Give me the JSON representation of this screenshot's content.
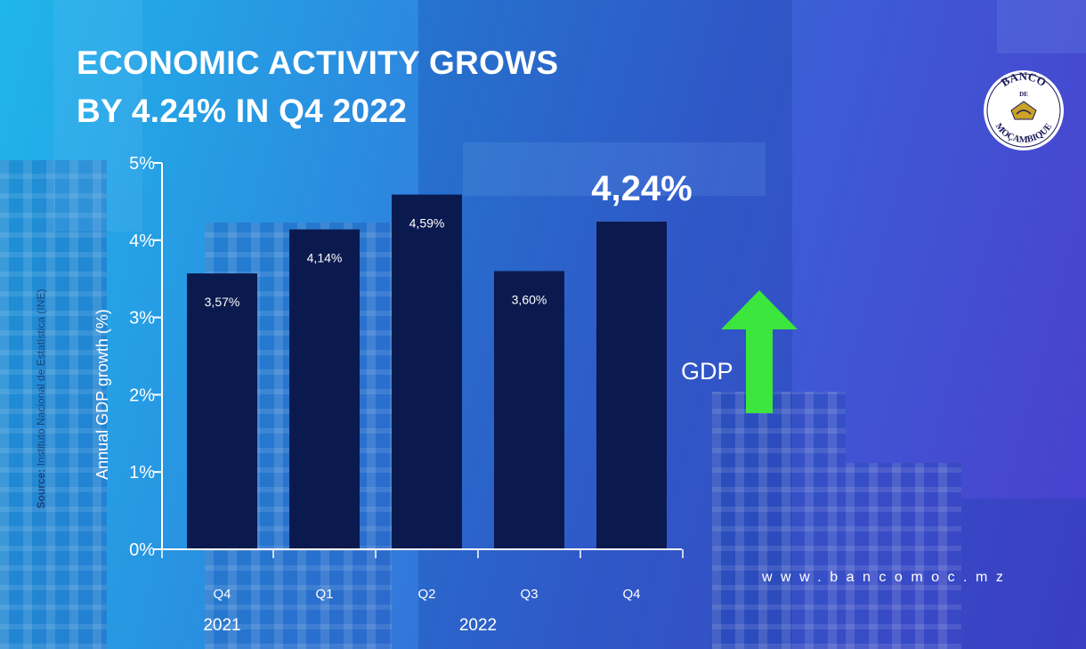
{
  "title": {
    "line1": "ECONOMIC ACTIVITY GROWS",
    "line2": "BY 4.24% IN Q4 2022"
  },
  "logo": {
    "top_text": "BANCO",
    "middle_text": "DE",
    "bottom_text": "MOÇAMBIQUE",
    "icon": "bank-seal-icon"
  },
  "source": {
    "label": "Source:",
    "text": "Instituto Nacional de Estatística (INE)"
  },
  "website": "www.bancomoc.mz",
  "highlight": {
    "value_label": "4,24%",
    "indicator_label": "GDP",
    "indicator_icon": "up-arrow-icon",
    "arrow_color": "#3ce63c"
  },
  "chart_data": {
    "type": "bar",
    "categories": [
      "Q4",
      "Q1",
      "Q2",
      "Q3",
      "Q4"
    ],
    "category_groups": [
      {
        "label": "2021",
        "from": 0,
        "to": 0
      },
      {
        "label": "2022",
        "from": 1,
        "to": 4
      }
    ],
    "values": [
      3.57,
      4.14,
      4.59,
      3.6,
      4.24
    ],
    "data_labels": [
      "3,57%",
      "4,14%",
      "4,59%",
      "3,60%",
      ""
    ],
    "ylabel": "Annual GDP growth (%)",
    "ylim": [
      0,
      5
    ],
    "yticks": [
      0,
      1,
      2,
      3,
      4,
      5
    ],
    "ytick_labels": [
      "0%",
      "1%",
      "2%",
      "3%",
      "4%",
      "5%"
    ],
    "grid": false,
    "bar_color": "#0b1a4e",
    "axis_color": "#ffffff"
  }
}
